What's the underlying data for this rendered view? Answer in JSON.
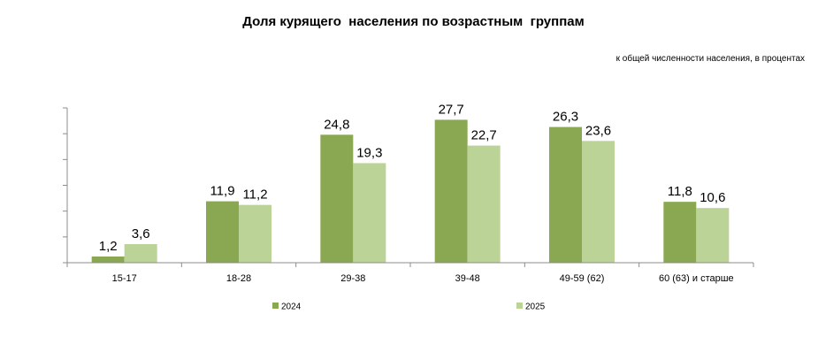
{
  "chart_data": {
    "type": "bar",
    "title": "Доля курящего  населения по возрастным  группам",
    "subtitle": "к общей численности населения, в процентах",
    "categories": [
      "15-17",
      "18-28",
      "29-38",
      "39-48",
      "49-59 (62)",
      "60 (63) и старше"
    ],
    "series": [
      {
        "name": "2024",
        "values": [
          1.2,
          11.9,
          24.8,
          27.7,
          26.3,
          11.8
        ],
        "labels": [
          "1,2",
          "11,9",
          "24,8",
          "27,7",
          "26,3",
          "11,8"
        ],
        "color": "#8aa851"
      },
      {
        "name": "2025",
        "values": [
          3.6,
          11.2,
          19.3,
          22.7,
          23.6,
          10.6
        ],
        "labels": [
          "3,6",
          "11,2",
          "19,3",
          "22,7",
          "23,6",
          "10,6"
        ],
        "color": "#bcd398"
      }
    ],
    "ylim": [
      0,
      30
    ],
    "grid": false,
    "legend": "bottom",
    "axis_color": "#8c8c8c"
  }
}
